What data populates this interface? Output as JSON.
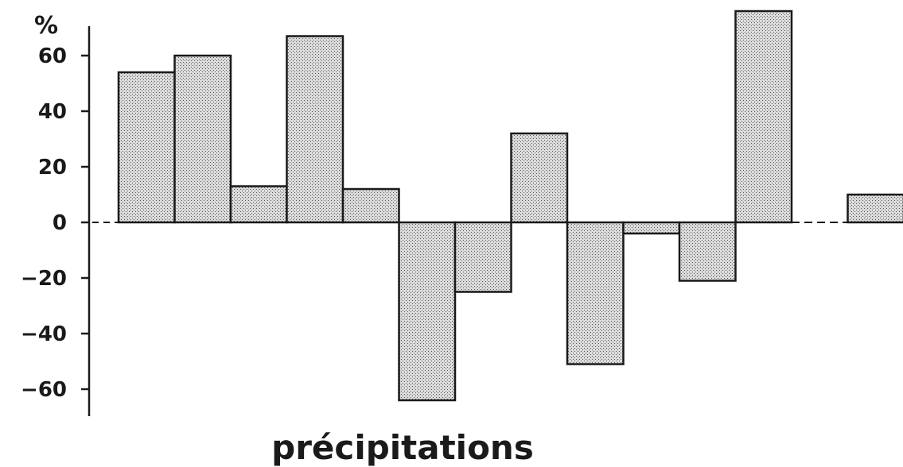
{
  "chart_data": {
    "type": "bar",
    "title": "précipitations",
    "xlabel": "",
    "ylabel": "%",
    "ylim": [
      -70,
      70
    ],
    "yticks": [
      60,
      40,
      20,
      0,
      -20,
      -40,
      -60
    ],
    "ytick_labels": [
      "60",
      "40",
      "20",
      "0",
      "−20",
      "−40",
      "−60"
    ],
    "grid": false,
    "values": [
      54,
      60,
      13,
      67,
      12,
      -64,
      -25,
      32,
      -51,
      -4,
      -21,
      76,
      null,
      10
    ],
    "colors": {
      "bar_fill": "#c8c8c8",
      "bar_stroke": "#1a1a1a",
      "axis": "#1a1a1a"
    }
  }
}
